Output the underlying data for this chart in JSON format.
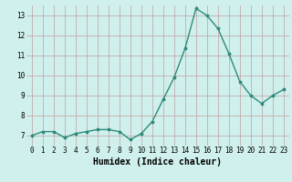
{
  "x": [
    0,
    1,
    2,
    3,
    4,
    5,
    6,
    7,
    8,
    9,
    10,
    11,
    12,
    13,
    14,
    15,
    16,
    17,
    18,
    19,
    20,
    21,
    22,
    23
  ],
  "y": [
    7.0,
    7.2,
    7.2,
    6.9,
    7.1,
    7.2,
    7.3,
    7.3,
    7.2,
    6.8,
    7.1,
    7.7,
    8.8,
    9.9,
    11.35,
    13.35,
    13.0,
    12.35,
    11.1,
    9.7,
    9.0,
    8.6,
    9.0,
    9.3
  ],
  "line_color": "#2e8b7a",
  "marker": "*",
  "marker_size": 2.5,
  "xlabel": "Humidex (Indice chaleur)",
  "ylim": [
    6.5,
    13.5
  ],
  "xlim": [
    -0.5,
    23.5
  ],
  "yticks": [
    7,
    8,
    9,
    10,
    11,
    12,
    13
  ],
  "xticks": [
    0,
    1,
    2,
    3,
    4,
    5,
    6,
    7,
    8,
    9,
    10,
    11,
    12,
    13,
    14,
    15,
    16,
    17,
    18,
    19,
    20,
    21,
    22,
    23
  ],
  "bg_color": "#cff0ec",
  "grid_color": "#c0a0a0",
  "tick_label_size": 5.5,
  "xlabel_size": 7.0,
  "line_width": 1.0
}
